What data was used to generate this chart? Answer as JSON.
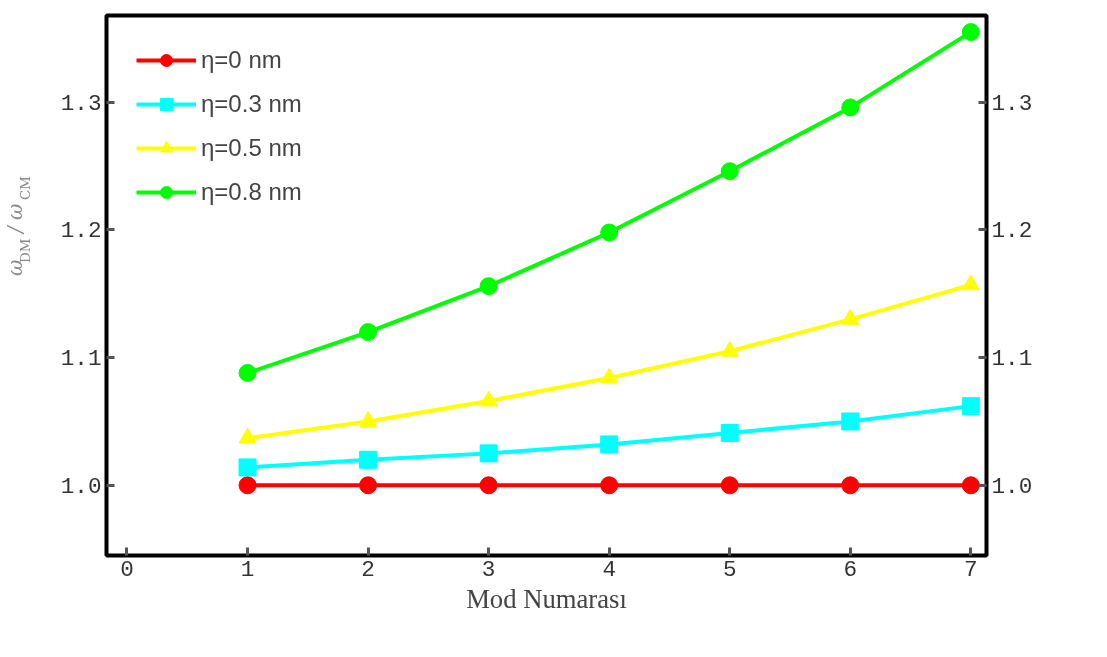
{
  "chart_data": {
    "type": "line",
    "xlabel": "Mod Numarası",
    "ylabel": "ω$_{DM}$ / ω$_{CM}$",
    "x": [
      1,
      2,
      3,
      4,
      5,
      6,
      7
    ],
    "series": [
      {
        "name": "η=0 nm",
        "color": "#ff0000",
        "marker": "circle",
        "values": [
          1.0,
          1.0,
          1.0,
          1.0,
          1.0,
          1.0,
          1.0
        ]
      },
      {
        "name": "η=0.3 nm",
        "color": "#00ffff",
        "marker": "square",
        "values": [
          1.014,
          1.02,
          1.025,
          1.032,
          1.041,
          1.05,
          1.062
        ]
      },
      {
        "name": "η=0.5 nm",
        "color": "#ffff00",
        "marker": "triangle",
        "values": [
          1.037,
          1.05,
          1.066,
          1.084,
          1.105,
          1.13,
          1.157
        ]
      },
      {
        "name": "η=0.8 nm",
        "color": "#00ff00",
        "marker": "circle",
        "values": [
          1.088,
          1.12,
          1.156,
          1.198,
          1.246,
          1.296,
          1.355
        ]
      }
    ],
    "xlim": [
      -0.17,
      7.13
    ],
    "xticks": [
      0,
      1,
      2,
      3,
      4,
      5,
      6,
      7
    ],
    "ylim": [
      0.945,
      1.368
    ],
    "yticks": [
      {
        "value": 1.0,
        "label": "1.0"
      },
      1.1,
      1.2,
      1.3
    ],
    "y2lim": [
      0.945,
      1.368
    ],
    "y2ticks": [
      {
        "value": 1.0,
        "label": "1.0"
      },
      1.1,
      1.2,
      1.3
    ],
    "legend": "top left",
    "grid": false,
    "line_style": "solid"
  }
}
